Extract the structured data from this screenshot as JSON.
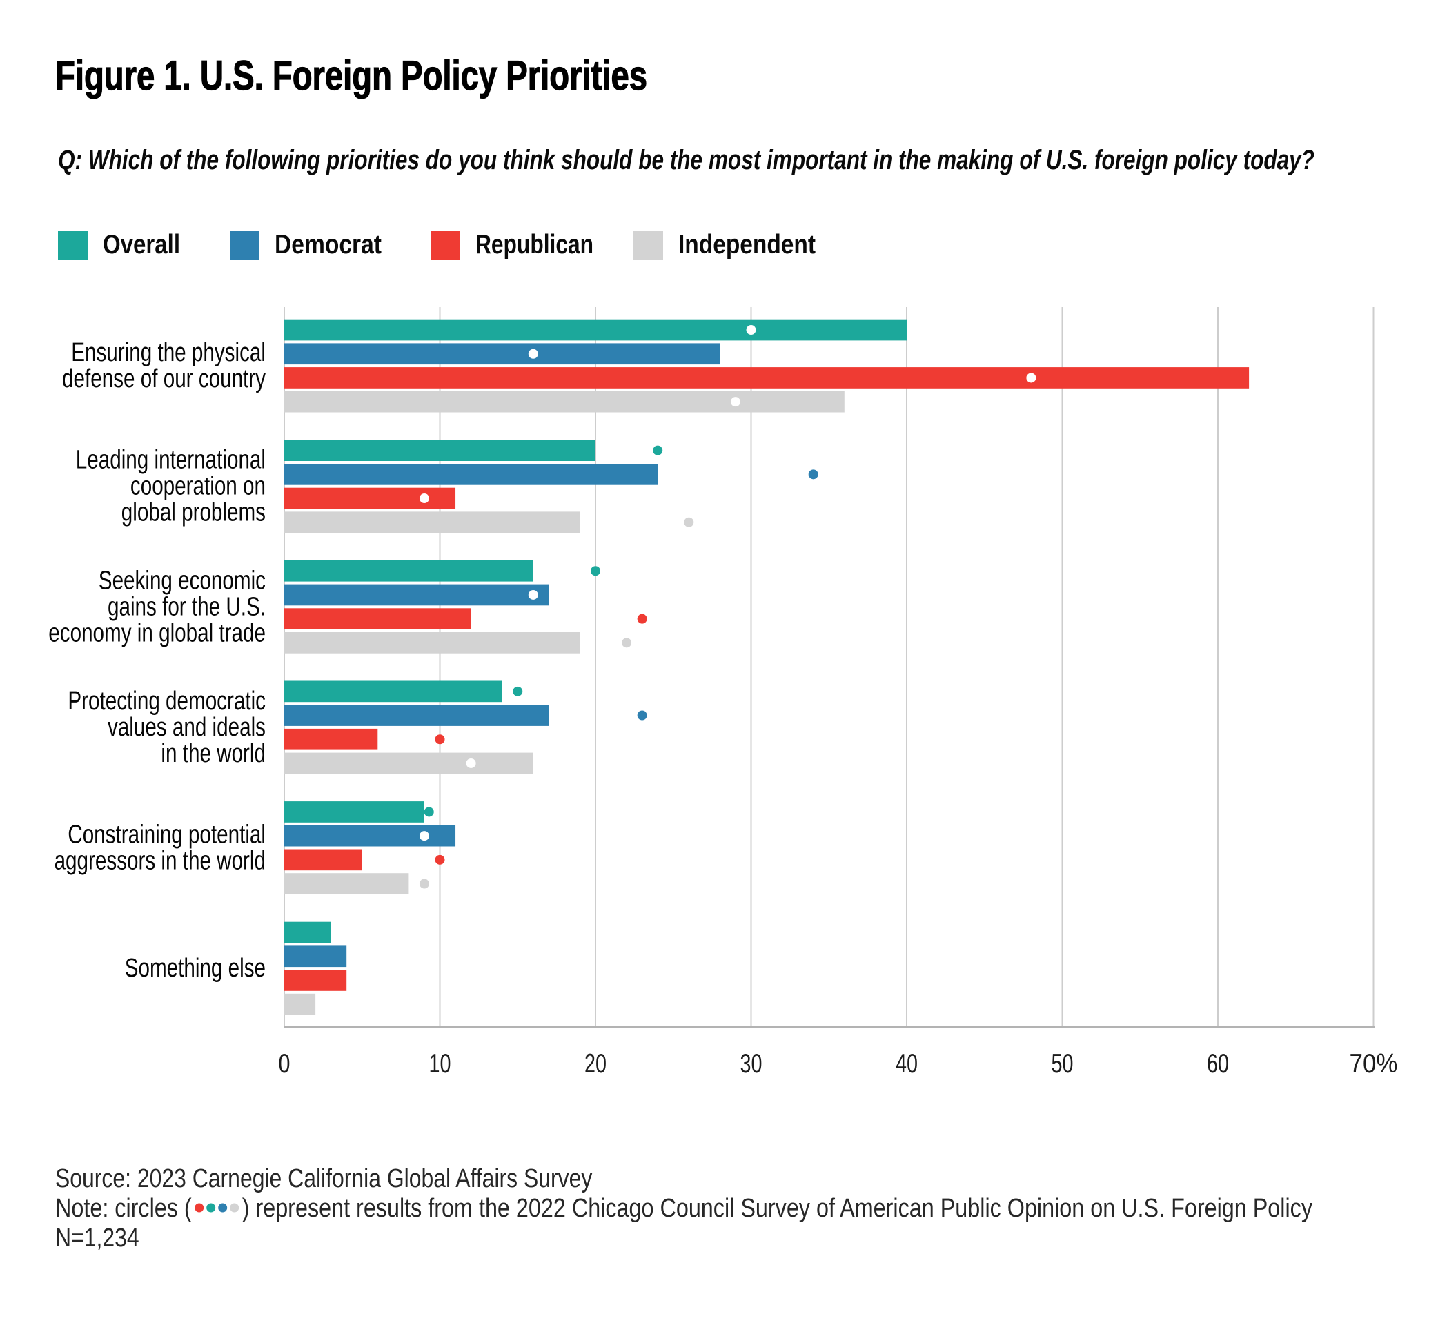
{
  "figure": {
    "title": "Figure 1. U.S. Foreign Policy Priorities",
    "question": "Q: Which of the following priorities do you think should be the most important in the making of U.S. foreign policy today?",
    "source": "Source: 2023 Carnegie California Global Affairs Survey",
    "note_prefix": "Note: circles (",
    "note_suffix": ") represent results from the 2022 Chicago Council Survey of American Public Opinion on U.S. Foreign Policy",
    "sample_size": "N=1,234"
  },
  "chart_data": {
    "type": "bar",
    "orientation": "horizontal",
    "title": "Figure 1. U.S. Foreign Policy Priorities",
    "xlabel": "",
    "ylabel": "",
    "xlim": [
      0,
      70
    ],
    "xticks": [
      0,
      10,
      20,
      30,
      40,
      50,
      60,
      70
    ],
    "xtick_labels": [
      "0",
      "10",
      "20",
      "30",
      "40",
      "50",
      "60",
      "70%"
    ],
    "grid": "vertical",
    "legend_position": "top",
    "categories": [
      "Ensuring the physical defense of our country",
      "Leading international cooperation on global problems",
      "Seeking economic gains for the U.S. economy in global trade",
      "Protecting democratic values and ideals in the world",
      "Constraining potential aggressors in the world",
      "Something else"
    ],
    "category_label_lines": [
      [
        "Ensuring the physical",
        "defense of our country"
      ],
      [
        "Leading international",
        "cooperation on",
        "global problems"
      ],
      [
        "Seeking economic",
        "gains for the U.S.",
        "economy in global trade"
      ],
      [
        "Protecting democratic",
        "values and ideals",
        "in the world"
      ],
      [
        "Constraining potential",
        "aggressors in the world"
      ],
      [
        "Something else"
      ]
    ],
    "series": [
      {
        "name": "Overall",
        "color": "#1CA89B",
        "values": [
          40,
          20,
          16,
          14,
          9,
          3
        ],
        "dots_2022": [
          30,
          24,
          20,
          15,
          9.3,
          null
        ]
      },
      {
        "name": "Democrat",
        "color": "#2E80B0",
        "values": [
          28,
          24,
          17,
          17,
          11,
          4
        ],
        "dots_2022": [
          16,
          34,
          16,
          23,
          9,
          null
        ]
      },
      {
        "name": "Republican",
        "color": "#EF3B33",
        "values": [
          62,
          11,
          12,
          6,
          5,
          4
        ],
        "dots_2022": [
          48,
          9,
          23,
          10,
          10,
          null
        ]
      },
      {
        "name": "Independent",
        "color": "#D3D3D3",
        "values": [
          36,
          19,
          19,
          16,
          8,
          2
        ],
        "dots_2022": [
          29,
          26,
          22,
          12,
          9,
          null
        ]
      }
    ],
    "dot_inside_bar_color": "#FFFFFF",
    "note_dot_colors": [
      "#EF3B33",
      "#1CA89B",
      "#2E80B0",
      "#D3D3D3"
    ]
  }
}
